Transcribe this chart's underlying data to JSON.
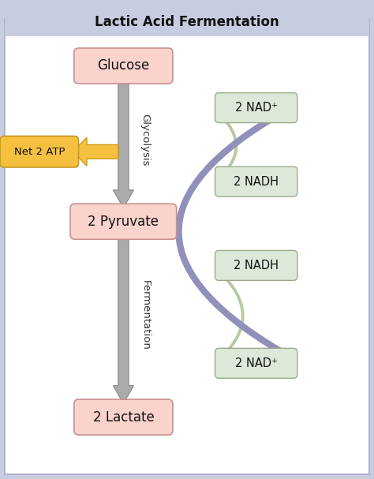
{
  "title": "Lactic Acid Fermentation",
  "title_fontsize": 12,
  "background_outer": "#c8cce0",
  "background_inner": "#ffffff",
  "box_pink_fc": "#fad4cc",
  "box_pink_ec": "#c89090",
  "box_green_fc": "#dde8d8",
  "box_green_ec": "#9aaa8a",
  "box_orange_fc": "#f5c040",
  "box_orange_ec": "#c89820",
  "arrow_gray": "#aaaaaa",
  "arrow_gray_dark": "#888888",
  "arrow_green": "#b8c8a0",
  "arrow_blue": "#9090bb",
  "arrow_orange": "#d4980a",
  "labels": {
    "glucose": "Glucose",
    "pyruvate": "2 Pyruvate",
    "lactate": "2 Lactate",
    "nad_plus_top": "2 NAD⁺",
    "nadh_top": "2 NADH",
    "nadh_bottom": "2 NADH",
    "nad_plus_bottom": "2 NAD⁺",
    "net_atp": "Net 2 ATP",
    "glycolysis": "Glycolysis",
    "fermentation": "Fermentation"
  }
}
